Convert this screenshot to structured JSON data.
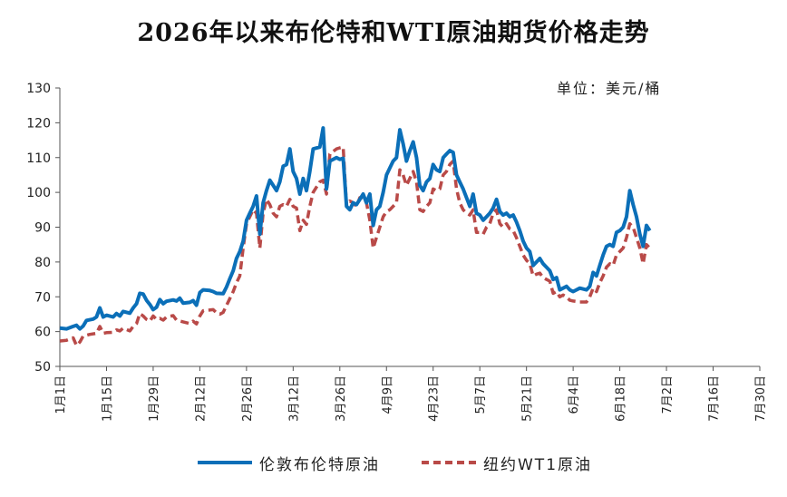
{
  "chart_data": {
    "type": "line",
    "title": "2026年以来布伦特和WTI原油期货价格走势",
    "unit_label": "单位：美元/桶",
    "ylim": [
      50,
      130
    ],
    "y_ticks": [
      50,
      60,
      70,
      80,
      90,
      100,
      110,
      120,
      130
    ],
    "x_ticks": [
      "1月1日",
      "1月15日",
      "1月29日",
      "2月12日",
      "2月26日",
      "3月12日",
      "3月26日",
      "4月9日",
      "4月23日",
      "5月7日",
      "5月21日",
      "6月4日",
      "6月18日",
      "7月2日",
      "7月16日",
      "7月30日"
    ],
    "x_tick_days": [
      1,
      15,
      29,
      43,
      57,
      71,
      85,
      99,
      113,
      127,
      141,
      155,
      169,
      183,
      197,
      211
    ],
    "grid": false,
    "legend_position": "bottom",
    "series": [
      {
        "name": "伦敦布伦特原油",
        "color": "#0b6fb8",
        "style": "solid",
        "points": [
          [
            1,
            61
          ],
          [
            3,
            60.8
          ],
          [
            5,
            61.5
          ],
          [
            6,
            61.8
          ],
          [
            7,
            60.8
          ],
          [
            8,
            61.6
          ],
          [
            9,
            63.2
          ],
          [
            11,
            63.6
          ],
          [
            12,
            64.2
          ],
          [
            13,
            66.8
          ],
          [
            14,
            64.2
          ],
          [
            15,
            64.7
          ],
          [
            17,
            64.2
          ],
          [
            18,
            65.2
          ],
          [
            19,
            64.5
          ],
          [
            20,
            65.8
          ],
          [
            22,
            65.3
          ],
          [
            23,
            66.8
          ],
          [
            24,
            68
          ],
          [
            25,
            71
          ],
          [
            26,
            70.8
          ],
          [
            27,
            69
          ],
          [
            28,
            67.8
          ],
          [
            29,
            66.3
          ],
          [
            30,
            67
          ],
          [
            31,
            69.2
          ],
          [
            32,
            68
          ],
          [
            33,
            68.7
          ],
          [
            35,
            69.1
          ],
          [
            36,
            68.8
          ],
          [
            37,
            69.6
          ],
          [
            38,
            68.2
          ],
          [
            40,
            68.4
          ],
          [
            41,
            68.9
          ],
          [
            42,
            67.6
          ],
          [
            43,
            71.2
          ],
          [
            44,
            72
          ],
          [
            46,
            71.8
          ],
          [
            47,
            71.5
          ],
          [
            48,
            71
          ],
          [
            50,
            70.9
          ],
          [
            51,
            72.8
          ],
          [
            52,
            75.2
          ],
          [
            53,
            77.5
          ],
          [
            54,
            81
          ],
          [
            55,
            83
          ],
          [
            56,
            86
          ],
          [
            57,
            92
          ],
          [
            58,
            94
          ],
          [
            59,
            96
          ],
          [
            60,
            99
          ],
          [
            61,
            88
          ],
          [
            62,
            97
          ],
          [
            63,
            100.5
          ],
          [
            64,
            103.5
          ],
          [
            65,
            102
          ],
          [
            66,
            100.5
          ],
          [
            67,
            103
          ],
          [
            68,
            107.5
          ],
          [
            69,
            108
          ],
          [
            70,
            112.5
          ],
          [
            71,
            106
          ],
          [
            72,
            104
          ],
          [
            73,
            99.5
          ],
          [
            74,
            104
          ],
          [
            75,
            100.5
          ],
          [
            76,
            106
          ],
          [
            77,
            112.5
          ],
          [
            79,
            113
          ],
          [
            80,
            118.5
          ],
          [
            81,
            101
          ],
          [
            82,
            109
          ],
          [
            84,
            110
          ],
          [
            85,
            109.5
          ],
          [
            86,
            109.8
          ],
          [
            87,
            96
          ],
          [
            88,
            95
          ],
          [
            89,
            97
          ],
          [
            90,
            96.5
          ],
          [
            91,
            98
          ],
          [
            92,
            99.5
          ],
          [
            93,
            97
          ],
          [
            94,
            99.5
          ],
          [
            95,
            90.5
          ],
          [
            96,
            95
          ],
          [
            97,
            96
          ],
          [
            98,
            100
          ],
          [
            99,
            105
          ],
          [
            100,
            107
          ],
          [
            101,
            109
          ],
          [
            102,
            110
          ],
          [
            103,
            118
          ],
          [
            104,
            114
          ],
          [
            105,
            109
          ],
          [
            106,
            112
          ],
          [
            107,
            114.5
          ],
          [
            108,
            110
          ],
          [
            109,
            102
          ],
          [
            110,
            100.5
          ],
          [
            111,
            103
          ],
          [
            112,
            104
          ],
          [
            113,
            108
          ],
          [
            114,
            106.5
          ],
          [
            115,
            106
          ],
          [
            116,
            110
          ],
          [
            117,
            111
          ],
          [
            118,
            112
          ],
          [
            119,
            111.5
          ],
          [
            120,
            105
          ],
          [
            121,
            103
          ],
          [
            122,
            101
          ],
          [
            123,
            98.5
          ],
          [
            124,
            96
          ],
          [
            125,
            99.5
          ],
          [
            126,
            94
          ],
          [
            127,
            93.5
          ],
          [
            128,
            92
          ],
          [
            129,
            93
          ],
          [
            130,
            94
          ],
          [
            131,
            95.5
          ],
          [
            132,
            98
          ],
          [
            133,
            94.5
          ],
          [
            134,
            93.5
          ],
          [
            135,
            94
          ],
          [
            136,
            93
          ],
          [
            137,
            93.5
          ],
          [
            138,
            91.5
          ],
          [
            139,
            89
          ],
          [
            140,
            86
          ],
          [
            141,
            84
          ],
          [
            142,
            83
          ],
          [
            143,
            79
          ],
          [
            144,
            80
          ],
          [
            145,
            81
          ],
          [
            146,
            79.5
          ],
          [
            147,
            78.5
          ],
          [
            148,
            77.5
          ],
          [
            149,
            75
          ],
          [
            150,
            75.5
          ],
          [
            151,
            72
          ],
          [
            152,
            72.5
          ],
          [
            153,
            73
          ],
          [
            154,
            72
          ],
          [
            155,
            71.5
          ],
          [
            157,
            72.5
          ],
          [
            159,
            72
          ],
          [
            160,
            73
          ],
          [
            161,
            77
          ],
          [
            162,
            76
          ],
          [
            163,
            79
          ],
          [
            164,
            82
          ],
          [
            165,
            84.5
          ],
          [
            166,
            85
          ],
          [
            167,
            84.5
          ],
          [
            168,
            88.5
          ],
          [
            169,
            89
          ],
          [
            170,
            90
          ],
          [
            171,
            93
          ],
          [
            172,
            100.5
          ],
          [
            173,
            96.5
          ],
          [
            174,
            93
          ],
          [
            175,
            88
          ],
          [
            176,
            84.5
          ],
          [
            177,
            90.5
          ],
          [
            178,
            89
          ]
        ]
      },
      {
        "name": "纽约WT1原油",
        "color": "#b94a48",
        "style": "dashed",
        "points": [
          [
            1,
            57.3
          ],
          [
            3,
            57.5
          ],
          [
            5,
            58.2
          ],
          [
            6,
            56
          ],
          [
            7,
            57
          ],
          [
            8,
            58.7
          ],
          [
            10,
            59.2
          ],
          [
            12,
            59.5
          ],
          [
            13,
            61.5
          ],
          [
            14,
            59.5
          ],
          [
            15,
            59.7
          ],
          [
            17,
            59.8
          ],
          [
            18,
            60.5
          ],
          [
            19,
            60.2
          ],
          [
            20,
            61
          ],
          [
            22,
            60.2
          ],
          [
            23,
            61.5
          ],
          [
            24,
            62.3
          ],
          [
            25,
            65.2
          ],
          [
            26,
            64.5
          ],
          [
            27,
            63.5
          ],
          [
            28,
            63
          ],
          [
            29,
            64.5
          ],
          [
            30,
            63.5
          ],
          [
            31,
            63.8
          ],
          [
            32,
            63.3
          ],
          [
            33,
            64.2
          ],
          [
            35,
            64.6
          ],
          [
            36,
            63.3
          ],
          [
            38,
            62.8
          ],
          [
            40,
            62.3
          ],
          [
            41,
            63
          ],
          [
            42,
            62.2
          ],
          [
            43,
            64.5
          ],
          [
            44,
            66
          ],
          [
            47,
            66.3
          ],
          [
            48,
            65.4
          ],
          [
            49,
            65
          ],
          [
            50,
            65.5
          ],
          [
            51,
            67.5
          ],
          [
            52,
            69.5
          ],
          [
            53,
            71.5
          ],
          [
            54,
            74
          ],
          [
            55,
            76
          ],
          [
            56,
            84
          ],
          [
            57,
            91
          ],
          [
            58,
            93
          ],
          [
            59,
            95
          ],
          [
            60,
            94
          ],
          [
            61,
            84
          ],
          [
            62,
            94
          ],
          [
            63,
            98
          ],
          [
            64,
            96.5
          ],
          [
            65,
            94
          ],
          [
            66,
            93
          ],
          [
            67,
            96
          ],
          [
            68,
            96.5
          ],
          [
            69,
            96
          ],
          [
            70,
            98
          ],
          [
            71,
            96
          ],
          [
            72,
            95.5
          ],
          [
            73,
            89
          ],
          [
            74,
            92
          ],
          [
            75,
            90.8
          ],
          [
            76,
            96
          ],
          [
            77,
            100
          ],
          [
            79,
            103
          ],
          [
            80,
            103.5
          ],
          [
            81,
            99.5
          ],
          [
            82,
            111
          ],
          [
            84,
            112.5
          ],
          [
            85,
            112.8
          ],
          [
            86,
            113
          ],
          [
            87,
            96
          ],
          [
            88,
            97.5
          ],
          [
            89,
            97
          ],
          [
            90,
            96
          ],
          [
            91,
            98.5
          ],
          [
            92,
            98.5
          ],
          [
            93,
            97
          ],
          [
            94,
            92
          ],
          [
            95,
            84
          ],
          [
            96,
            87
          ],
          [
            97,
            90
          ],
          [
            98,
            93
          ],
          [
            99,
            94.5
          ],
          [
            100,
            95
          ],
          [
            101,
            96
          ],
          [
            102,
            97
          ],
          [
            103,
            106.5
          ],
          [
            104,
            105
          ],
          [
            105,
            102
          ],
          [
            106,
            104
          ],
          [
            107,
            106
          ],
          [
            108,
            103
          ],
          [
            109,
            95
          ],
          [
            110,
            94.5
          ],
          [
            111,
            96
          ],
          [
            112,
            97
          ],
          [
            113,
            101
          ],
          [
            114,
            100.5
          ],
          [
            115,
            101
          ],
          [
            116,
            105
          ],
          [
            117,
            106
          ],
          [
            118,
            108
          ],
          [
            119,
            109
          ],
          [
            120,
            101
          ],
          [
            121,
            97
          ],
          [
            122,
            95
          ],
          [
            123,
            94
          ],
          [
            124,
            93.5
          ],
          [
            125,
            95
          ],
          [
            126,
            88.5
          ],
          [
            127,
            88.5
          ],
          [
            128,
            88
          ],
          [
            129,
            90
          ],
          [
            130,
            91
          ],
          [
            131,
            94
          ],
          [
            132,
            95
          ],
          [
            133,
            91
          ],
          [
            134,
            90
          ],
          [
            135,
            91
          ],
          [
            136,
            89.5
          ],
          [
            137,
            89
          ],
          [
            138,
            87
          ],
          [
            139,
            84.5
          ],
          [
            140,
            82
          ],
          [
            141,
            80.5
          ],
          [
            142,
            79.5
          ],
          [
            143,
            76
          ],
          [
            144,
            76.5
          ],
          [
            145,
            76.8
          ],
          [
            146,
            75.5
          ],
          [
            147,
            75
          ],
          [
            148,
            74.5
          ],
          [
            149,
            71
          ],
          [
            150,
            71.5
          ],
          [
            151,
            70
          ],
          [
            152,
            70.5
          ],
          [
            153,
            70
          ],
          [
            154,
            69
          ],
          [
            155,
            68.8
          ],
          [
            157,
            68.5
          ],
          [
            159,
            68.5
          ],
          [
            160,
            70
          ],
          [
            161,
            72.5
          ],
          [
            162,
            71.5
          ],
          [
            163,
            74
          ],
          [
            164,
            76
          ],
          [
            165,
            78.5
          ],
          [
            166,
            79.5
          ],
          [
            167,
            79
          ],
          [
            168,
            82
          ],
          [
            169,
            83
          ],
          [
            170,
            84
          ],
          [
            171,
            87
          ],
          [
            172,
            91
          ],
          [
            173,
            90
          ],
          [
            174,
            87
          ],
          [
            175,
            84
          ],
          [
            176,
            79.5
          ],
          [
            177,
            85
          ],
          [
            178,
            84
          ]
        ]
      }
    ]
  }
}
